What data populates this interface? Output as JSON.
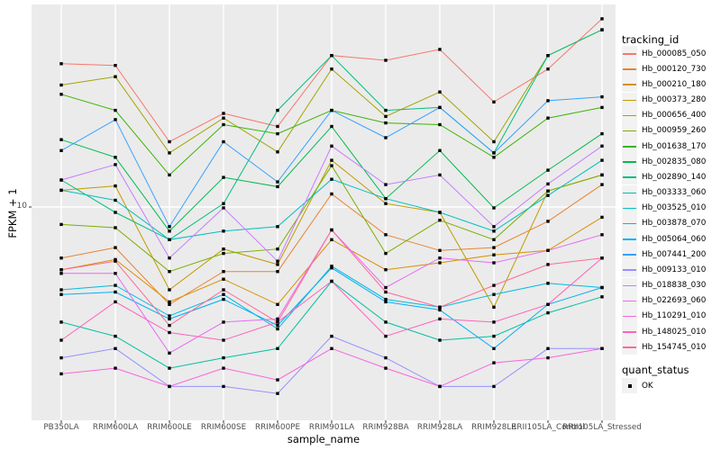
{
  "chart_data": {
    "type": "line",
    "title": "",
    "xlabel": "sample_name",
    "ylabel": "FPKM + 1",
    "y_scale": "log10",
    "y_tick_labels": [
      "10"
    ],
    "ylim": [
      1.1,
      95
    ],
    "grid": true,
    "legend_position": "right",
    "legend_titles": {
      "tracking": "tracking_id",
      "quant": "quant_status"
    },
    "quant_status": {
      "label": "OK",
      "marker": "black-square"
    },
    "panel_color": "#EBEBEB",
    "gridline_color": "#FFFFFF",
    "marker_color": "#000000",
    "categories": [
      "PB350LA",
      "RRIM600LA",
      "RRIM600LE",
      "RRIM600SE",
      "RRIM600PE",
      "RRIM901LA",
      "RRIM928BA",
      "RRIM928LA",
      "RRIM928LE",
      "RRII105LA_Control",
      "RRII105LA_Stressed"
    ],
    "series": [
      {
        "name": "Hb_000085_050",
        "color": "#F8766D",
        "values": [
          51,
          50,
          21,
          29,
          25,
          56,
          53,
          60,
          33,
          48,
          85
        ]
      },
      {
        "name": "Hb_000120_730",
        "color": "#EA8331",
        "values": [
          5.6,
          6.3,
          3.3,
          4.8,
          4.8,
          11.6,
          7.3,
          6.1,
          6.3,
          8.5,
          12.9
        ]
      },
      {
        "name": "Hb_000210_180",
        "color": "#D89000",
        "values": [
          4.9,
          5.5,
          3.4,
          4.4,
          3.3,
          6.9,
          4.9,
          5.3,
          5.8,
          6.1,
          8.9
        ]
      },
      {
        "name": "Hb_000373_280",
        "color": "#C09B00",
        "values": [
          12.1,
          12.7,
          3.9,
          6.2,
          5.2,
          17,
          10.4,
          9.4,
          3.2,
          12,
          14.4
        ]
      },
      {
        "name": "Hb_000656_400",
        "color": "#A3A500",
        "values": [
          40,
          44,
          18.5,
          27.5,
          18.7,
          48,
          28,
          37,
          21,
          56,
          75
        ]
      },
      {
        "name": "Hb_000959_260",
        "color": "#7CAE00",
        "values": [
          8.2,
          7.9,
          4.8,
          5.9,
          6.2,
          16,
          5.9,
          8.6,
          6.9,
          12,
          14.4
        ]
      },
      {
        "name": "Hb_001638_170",
        "color": "#39B600",
        "values": [
          36,
          30,
          14.4,
          25.5,
          23,
          30,
          26,
          25.5,
          17.6,
          27.5,
          31
        ]
      },
      {
        "name": "Hb_002835_080",
        "color": "#00BB4E",
        "values": [
          21.5,
          17.6,
          7.6,
          14,
          12.6,
          25,
          11,
          19,
          9.9,
          15.2,
          23
        ]
      },
      {
        "name": "Hb_002890_140",
        "color": "#00BF7D",
        "values": [
          13.6,
          9.4,
          6.9,
          10.4,
          30,
          56,
          30,
          31,
          18.5,
          56,
          75
        ]
      },
      {
        "name": "Hb_003333_060",
        "color": "#00C1A3",
        "values": [
          2.7,
          2.3,
          1.6,
          1.8,
          2.0,
          4.3,
          2.7,
          2.2,
          2.3,
          3.0,
          3.6
        ]
      },
      {
        "name": "Hb_003525_010",
        "color": "#00BFC4",
        "values": [
          12.1,
          10.8,
          6.9,
          7.6,
          8.0,
          13.7,
          11,
          9.4,
          7.6,
          11.4,
          17
        ]
      },
      {
        "name": "Hb_003878_070",
        "color": "#00BAE0",
        "values": [
          3.9,
          4.1,
          2.9,
          3.7,
          2.5,
          5.1,
          3.5,
          3.2,
          3.7,
          4.2,
          4.0
        ]
      },
      {
        "name": "Hb_005064_060",
        "color": "#00B0F6",
        "values": [
          3.7,
          3.8,
          2.8,
          3.5,
          2.6,
          5.0,
          3.4,
          3.1,
          2.0,
          3.3,
          4.0
        ]
      },
      {
        "name": "Hb_007441_200",
        "color": "#35A2FF",
        "values": [
          19,
          27,
          8.0,
          21,
          13.3,
          30,
          22,
          31,
          18.5,
          33.5,
          35
        ]
      },
      {
        "name": "Hb_009133_010",
        "color": "#9590FF",
        "values": [
          1.8,
          2.0,
          1.3,
          1.3,
          1.2,
          2.3,
          1.8,
          1.3,
          1.3,
          2.0,
          2.0
        ]
      },
      {
        "name": "Hb_018838_030",
        "color": "#C77CFF",
        "values": [
          13.6,
          16.2,
          5.6,
          9.9,
          5.4,
          20,
          12.9,
          14.4,
          8.0,
          13,
          20
        ]
      },
      {
        "name": "Hb_022693_060",
        "color": "#E76BF3",
        "values": [
          4.7,
          4.7,
          1.9,
          2.7,
          2.8,
          7.7,
          4.0,
          5.6,
          5.3,
          6.1,
          7.3
        ]
      },
      {
        "name": "Hb_110291_010",
        "color": "#FA62DB",
        "values": [
          1.5,
          1.6,
          1.3,
          1.6,
          1.4,
          2.0,
          1.6,
          1.3,
          1.7,
          1.8,
          2.0
        ]
      },
      {
        "name": "Hb_148025_010",
        "color": "#FF62BC",
        "values": [
          2.2,
          3.4,
          2.4,
          2.2,
          2.7,
          4.3,
          2.3,
          2.8,
          2.7,
          3.3,
          5.6
        ]
      },
      {
        "name": "Hb_154745_010",
        "color": "#FF6A98",
        "values": [
          4.9,
          5.4,
          2.6,
          3.9,
          2.7,
          7.7,
          3.8,
          3.2,
          4.1,
          5.2,
          5.6
        ]
      }
    ]
  }
}
